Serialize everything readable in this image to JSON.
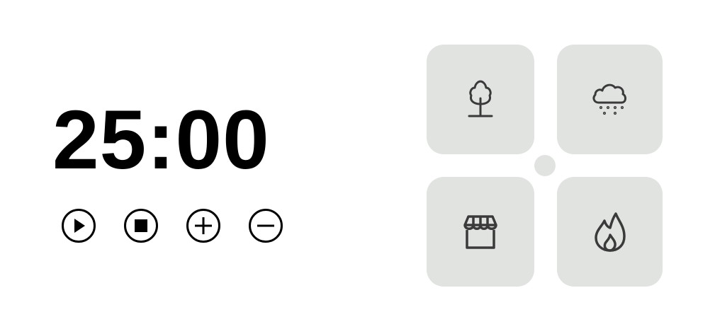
{
  "timer": {
    "display": "25:00",
    "controls": [
      {
        "name": "play",
        "icon": "play-icon"
      },
      {
        "name": "stop",
        "icon": "stop-icon"
      },
      {
        "name": "increase",
        "icon": "plus-icon"
      },
      {
        "name": "decrease",
        "icon": "minus-icon"
      }
    ]
  },
  "sounds": {
    "tiles": [
      {
        "name": "forest",
        "icon": "tree-icon"
      },
      {
        "name": "rain",
        "icon": "cloud-rain-icon"
      },
      {
        "name": "cafe",
        "icon": "storefront-icon"
      },
      {
        "name": "fire",
        "icon": "flame-icon"
      }
    ],
    "tile_color": "#e1e3e1",
    "icon_color": "#3a3a3a"
  }
}
